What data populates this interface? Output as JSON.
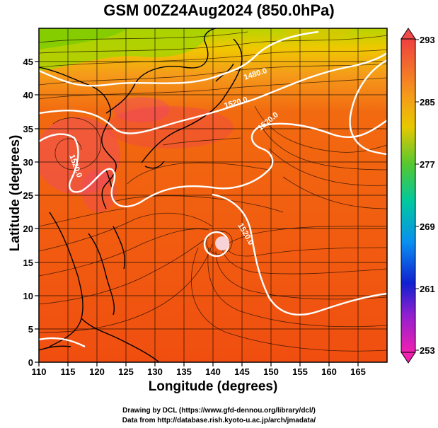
{
  "title": "GSM 00Z24Aug2024 (850.0hPa)",
  "x_axis": {
    "label": "Longitude (degrees)",
    "ticks": [
      "110",
      "115",
      "120",
      "125",
      "130",
      "135",
      "140",
      "145",
      "150",
      "155",
      "160",
      "165"
    ]
  },
  "y_axis": {
    "label": "Latitude  (degrees)",
    "ticks": [
      "0",
      "5",
      "10",
      "15",
      "20",
      "25",
      "30",
      "35",
      "40",
      "45"
    ]
  },
  "colorbar": {
    "ticks": [
      "293",
      "285",
      "277",
      "269",
      "261",
      "253"
    ]
  },
  "contour_labels": [
    "1480.0",
    "1520.0",
    "1520.0",
    "1520.0",
    "1520.0"
  ],
  "credits": {
    "line1": "Drawing by DCL (https://www.gfd-dennou.org/library/dcl/)",
    "line2": "Data from http://database.rish.kyoto-u.ac.jp/arch/jmadata/"
  },
  "map": {
    "lon_range": [
      110,
      170
    ],
    "lat_range": [
      0,
      50
    ],
    "grid": true,
    "colors": {
      "warm_field": "#f25c10",
      "hot_core": "#f0406a",
      "cool_field": "#9fd400",
      "contour": "#ffffff",
      "coast": "#000000"
    }
  }
}
